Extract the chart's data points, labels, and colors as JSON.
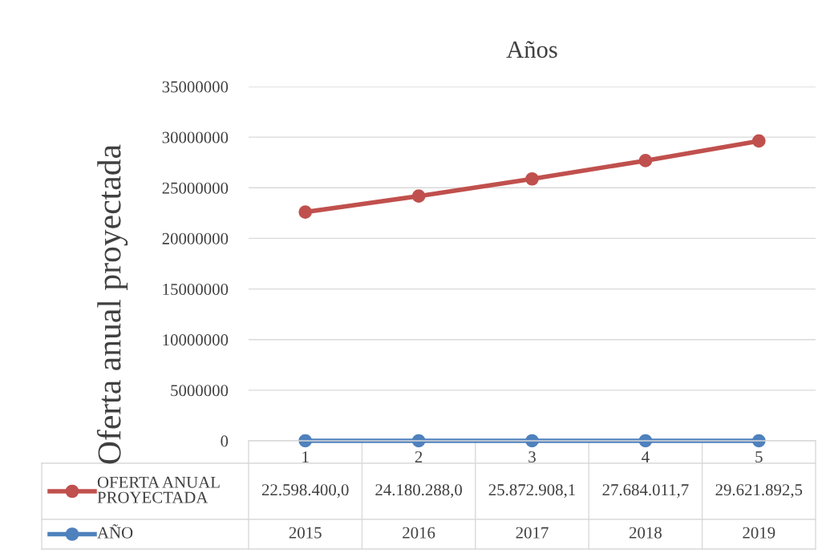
{
  "chart_data": {
    "type": "line",
    "title": "Años",
    "ylabel": "Oferta anual proyectada",
    "categories": [
      "1",
      "2",
      "3",
      "4",
      "5"
    ],
    "series": [
      {
        "name": "OFERTA ANUAL PROYECTADA",
        "color": "#c0504d",
        "values": [
          22598400.0,
          24180288.0,
          25872908.1,
          27684011.7,
          29621892.5
        ],
        "value_labels": [
          "22.598.400,0",
          "24.180.288,0",
          "25.872.908,1",
          "27.684.011,7",
          "29.621.892,5"
        ]
      },
      {
        "name": "AÑO",
        "color": "#4f81bd",
        "values": [
          2015,
          2016,
          2017,
          2018,
          2019
        ],
        "value_labels": [
          "2015",
          "2016",
          "2017",
          "2018",
          "2019"
        ]
      }
    ],
    "ylim": [
      0,
      35000000
    ],
    "yticks": [
      0,
      5000000,
      10000000,
      15000000,
      20000000,
      25000000,
      30000000,
      35000000
    ],
    "grid": "y",
    "marker": "circle",
    "line_style": "solid",
    "legend": "bottom"
  }
}
